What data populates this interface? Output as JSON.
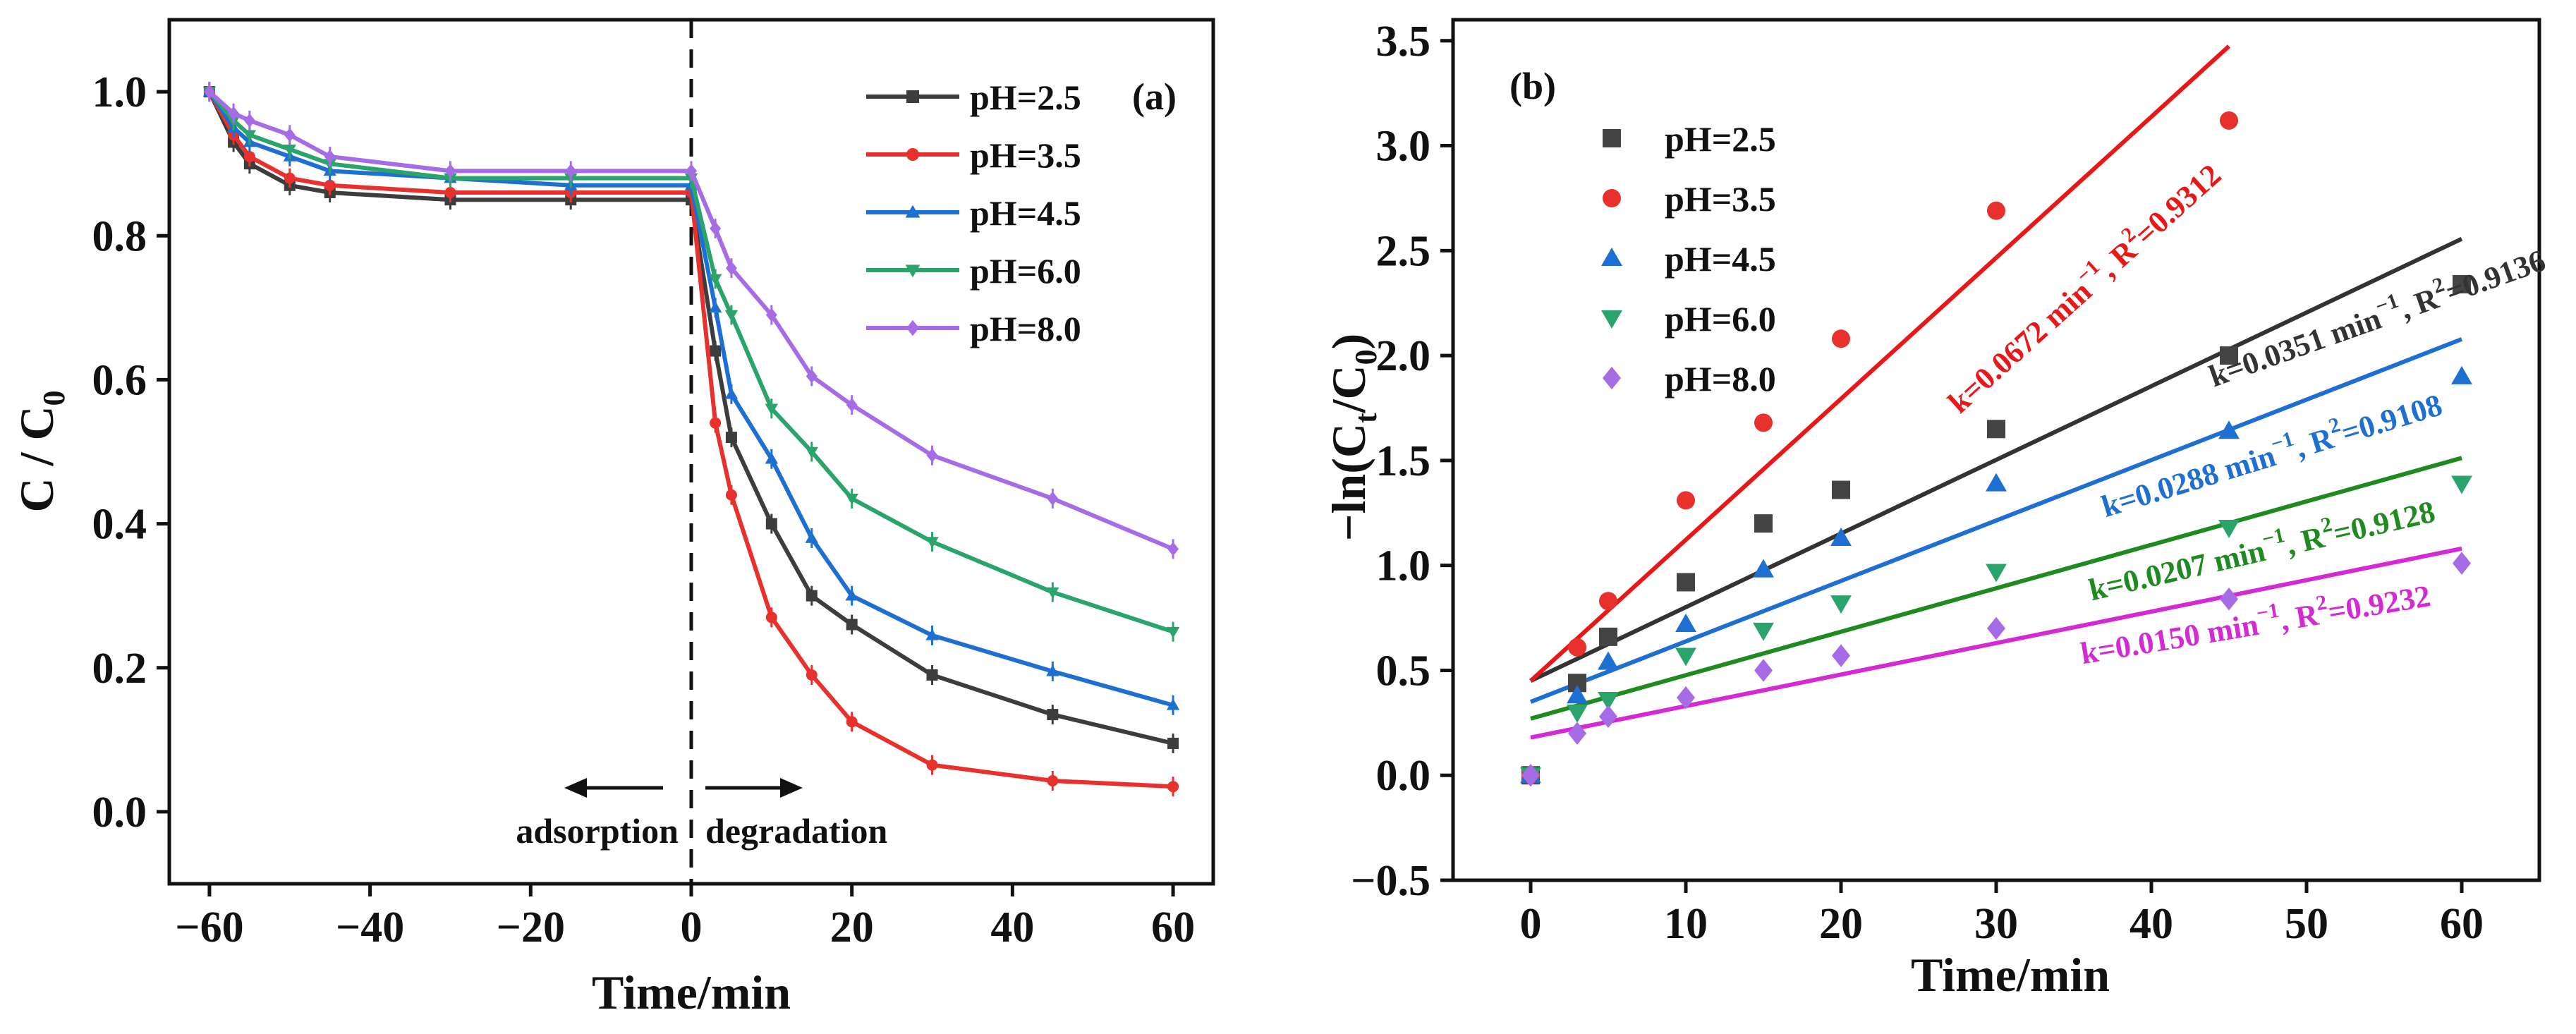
{
  "chart_data": [
    {
      "panel_label": "(a)",
      "type": "line",
      "xlabel": "Time/min",
      "ylabel_main": "C / C",
      "ylabel_sub": "0",
      "xlim": [
        -65,
        65
      ],
      "ylim": [
        -0.1,
        1.1
      ],
      "x_ticks": [
        -60,
        -40,
        -20,
        0,
        20,
        40,
        60
      ],
      "x_tick_labels": [
        "−60",
        "−40",
        "−20",
        "0",
        "20",
        "40",
        "60"
      ],
      "y_ticks": [
        0.0,
        0.2,
        0.4,
        0.6,
        0.8,
        1.0
      ],
      "y_tick_labels": [
        "0.0",
        "0.2",
        "0.4",
        "0.6",
        "0.8",
        "1.0"
      ],
      "x": [
        -60,
        -57,
        -55,
        -50,
        -45,
        -30,
        -15,
        0,
        3,
        5,
        10,
        15,
        20,
        30,
        45,
        60
      ],
      "series": [
        {
          "name": "pH=2.5",
          "color": "#3d3d3d",
          "marker": "square",
          "values": [
            1.0,
            0.93,
            0.9,
            0.87,
            0.86,
            0.85,
            0.85,
            0.85,
            0.64,
            0.52,
            0.4,
            0.3,
            0.26,
            0.19,
            0.135,
            0.095
          ]
        },
        {
          "name": "pH=3.5",
          "color": "#e8312c",
          "marker": "circle",
          "values": [
            1.0,
            0.94,
            0.91,
            0.88,
            0.87,
            0.86,
            0.86,
            0.86,
            0.54,
            0.44,
            0.27,
            0.19,
            0.125,
            0.065,
            0.043,
            0.035
          ]
        },
        {
          "name": "pH=4.5",
          "color": "#1e6fd2",
          "marker": "triangle-up",
          "values": [
            1.0,
            0.95,
            0.93,
            0.91,
            0.89,
            0.88,
            0.87,
            0.87,
            0.7,
            0.58,
            0.49,
            0.38,
            0.3,
            0.245,
            0.195,
            0.148
          ]
        },
        {
          "name": "pH=6.0",
          "color": "#2aa46a",
          "marker": "triangle-down",
          "values": [
            1.0,
            0.96,
            0.94,
            0.92,
            0.9,
            0.88,
            0.88,
            0.88,
            0.74,
            0.69,
            0.56,
            0.5,
            0.435,
            0.375,
            0.305,
            0.25
          ]
        },
        {
          "name": "pH=8.0",
          "color": "#a66ce6",
          "marker": "diamond",
          "values": [
            1.0,
            0.97,
            0.96,
            0.94,
            0.91,
            0.89,
            0.89,
            0.89,
            0.81,
            0.755,
            0.69,
            0.605,
            0.565,
            0.495,
            0.435,
            0.365
          ]
        }
      ],
      "annotations": {
        "left": "adsorption",
        "right": "degradation"
      }
    },
    {
      "panel_label": "(b)",
      "type": "scatter",
      "xlabel": "Time/min",
      "ylabel": "−ln(C",
      "ylabel_sub": "t",
      "ylabel_mid": "/C",
      "ylabel_sub2": "0",
      "ylabel_end": ")",
      "xlim": [
        -5,
        65
      ],
      "ylim": [
        -0.5,
        3.6
      ],
      "x_ticks": [
        0,
        10,
        20,
        30,
        40,
        50,
        60
      ],
      "x_tick_labels": [
        "0",
        "10",
        "20",
        "30",
        "40",
        "50",
        "60"
      ],
      "y_ticks": [
        -0.5,
        0.0,
        0.5,
        1.0,
        1.5,
        2.0,
        2.5,
        3.0,
        3.5
      ],
      "y_tick_labels": [
        "−0.5",
        "0.0",
        "0.5",
        "1.0",
        "1.5",
        "2.0",
        "2.5",
        "3.0",
        "3.5"
      ],
      "x": [
        0,
        3,
        5,
        10,
        15,
        20,
        30,
        45,
        60
      ],
      "series": [
        {
          "name": "pH=2.5",
          "color": "#444444",
          "fit_color": "#333333",
          "marker": "square",
          "values": [
            0,
            0.44,
            0.66,
            0.92,
            1.2,
            1.36,
            1.65,
            2.0,
            2.34
          ],
          "fit": {
            "intercept": 0.45,
            "slope": 0.0351,
            "x_end": 60
          },
          "fit_label": {
            "k_text": "k=0.0351 min",
            "k_sup": "−1",
            "r_text": ", R",
            "r_sup": "2",
            "r_val": "=0.9136",
            "angle": -19.5
          }
        },
        {
          "name": "pH=3.5",
          "color": "#e8312c",
          "fit_color": "#e81818",
          "marker": "circle",
          "values": [
            0,
            0.61,
            0.83,
            1.31,
            1.68,
            2.08,
            2.69,
            3.12
          ],
          "fit": {
            "intercept": 0.45,
            "slope": 0.0672,
            "x_end": 45
          },
          "fit_label": {
            "k_text": "k=0.0672 min",
            "k_sup": "−1",
            "r_text": ", R",
            "r_sup": "2",
            "r_val": "=0.9312",
            "angle": -42
          }
        },
        {
          "name": "pH=4.5",
          "color": "#1e6fd2",
          "fit_color": "#1e6fd2",
          "marker": "triangle-up",
          "values": [
            0,
            0.38,
            0.54,
            0.72,
            0.98,
            1.13,
            1.39,
            1.64,
            1.9
          ],
          "fit": {
            "intercept": 0.35,
            "slope": 0.0288,
            "x_end": 60
          },
          "fit_label": {
            "k_text": "k=0.0288 min",
            "k_sup": "−1",
            "r_text": ", R",
            "r_sup": "2",
            "r_val": "=0.9108",
            "angle": -17
          }
        },
        {
          "name": "pH=6.0",
          "color": "#2aa46a",
          "fit_color": "#1f8a1f",
          "marker": "triangle-down",
          "values": [
            0,
            0.3,
            0.36,
            0.57,
            0.69,
            0.82,
            0.97,
            1.18,
            1.39
          ],
          "fit": {
            "intercept": 0.27,
            "slope": 0.0207,
            "x_end": 60
          },
          "fit_label": {
            "k_text": "k=0.0207 min",
            "k_sup": "−1",
            "r_text": ", R",
            "r_sup": "2",
            "r_val": "=0.9128",
            "angle": -13
          }
        },
        {
          "name": "pH=8.0",
          "color": "#a66ce6",
          "fit_color": "#d42ad4",
          "marker": "diamond",
          "values": [
            0,
            0.2,
            0.28,
            0.37,
            0.5,
            0.57,
            0.7,
            0.84,
            1.01
          ],
          "fit": {
            "intercept": 0.18,
            "slope": 0.015,
            "x_end": 60
          },
          "fit_label": {
            "k_text": "k=0.0150 min",
            "k_sup": "−1",
            "r_text": ", R",
            "r_sup": "2",
            "r_val": "=0.9232",
            "angle": -9.5
          }
        }
      ]
    }
  ]
}
